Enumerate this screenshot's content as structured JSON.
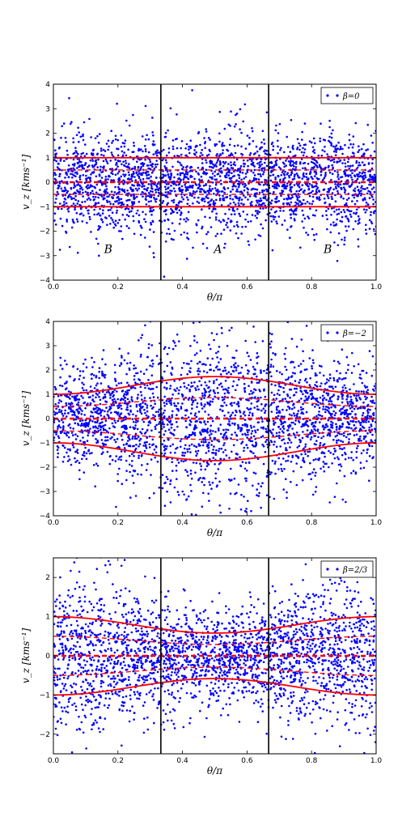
{
  "chart_data": [
    {
      "type": "scatter",
      "beta": 0,
      "legend": "β=0",
      "xlabel": "θ/π",
      "ylabel": "v_z [kms⁻¹]",
      "xlim": [
        0,
        1
      ],
      "ylim": [
        -4,
        4
      ],
      "xticks": [
        "0.0",
        "0.2",
        "0.4",
        "0.6",
        "0.8",
        "1.0"
      ],
      "yticks": [
        "−4",
        "−3",
        "−2",
        "−1",
        "0",
        "1",
        "2",
        "3",
        "4"
      ],
      "ytick_values": [
        -4,
        -3,
        -2,
        -1,
        0,
        1,
        2,
        3,
        4
      ],
      "vlines": [
        0.333,
        0.667
      ],
      "region_labels": [
        {
          "text": "B",
          "x": 0.17,
          "y": -2.9
        },
        {
          "text": "A",
          "x": 0.51,
          "y": -2.9
        },
        {
          "text": "B",
          "x": 0.85,
          "y": -2.9
        }
      ],
      "scatter_n": 2600,
      "scatter_color": "#0000ff",
      "curve_color": "#ff0000",
      "envelope": {
        "solid": [
          [
            0,
            1.0
          ],
          [
            0.5,
            1.0
          ],
          [
            1,
            1.0
          ]
        ],
        "dashed_mean": [
          [
            0,
            0
          ],
          [
            1,
            0
          ]
        ]
      },
      "grid": false,
      "legend_position": "upper right"
    },
    {
      "type": "scatter",
      "beta": -2,
      "legend": "β=−2",
      "xlabel": "θ/π",
      "ylabel": "v_z [kms⁻¹]",
      "xlim": [
        0,
        1
      ],
      "ylim": [
        -4,
        4
      ],
      "xticks": [
        "0.0",
        "0.2",
        "0.4",
        "0.6",
        "0.8",
        "1.0"
      ],
      "yticks": [
        "−4",
        "−3",
        "−2",
        "−1",
        "0",
        "1",
        "2",
        "3",
        "4"
      ],
      "ytick_values": [
        -4,
        -3,
        -2,
        -1,
        0,
        1,
        2,
        3,
        4
      ],
      "vlines": [
        0.333,
        0.667
      ],
      "scatter_n": 2600,
      "scatter_color": "#0000ff",
      "curve_color": "#ff0000",
      "envelope": {
        "solid": [
          [
            0,
            1.0
          ],
          [
            0.5,
            1.73
          ],
          [
            1,
            1.0
          ]
        ],
        "dashed_mean": [
          [
            0,
            0
          ],
          [
            1,
            0
          ]
        ]
      },
      "grid": false,
      "legend_position": "upper right"
    },
    {
      "type": "scatter",
      "beta": 0.667,
      "legend": "β=2/3",
      "xlabel": "θ/π",
      "ylabel": "v_z [kms⁻¹]",
      "xlim": [
        0,
        1
      ],
      "ylim": [
        -2.5,
        2.5
      ],
      "xticks": [
        "0.0",
        "0.2",
        "0.4",
        "0.6",
        "0.8",
        "1.0"
      ],
      "yticks": [
        "−2",
        "−1",
        "0",
        "1",
        "2"
      ],
      "ytick_values": [
        -2,
        -1,
        0,
        1,
        2
      ],
      "vlines": [
        0.333,
        0.667
      ],
      "scatter_n": 2600,
      "scatter_color": "#0000ff",
      "curve_color": "#ff0000",
      "envelope": {
        "solid": [
          [
            0,
            1.0
          ],
          [
            0.5,
            0.58
          ],
          [
            1,
            1.0
          ]
        ],
        "dashed_mean": [
          [
            0,
            0
          ],
          [
            1,
            0
          ]
        ]
      },
      "grid": false,
      "legend_position": "upper right"
    }
  ]
}
